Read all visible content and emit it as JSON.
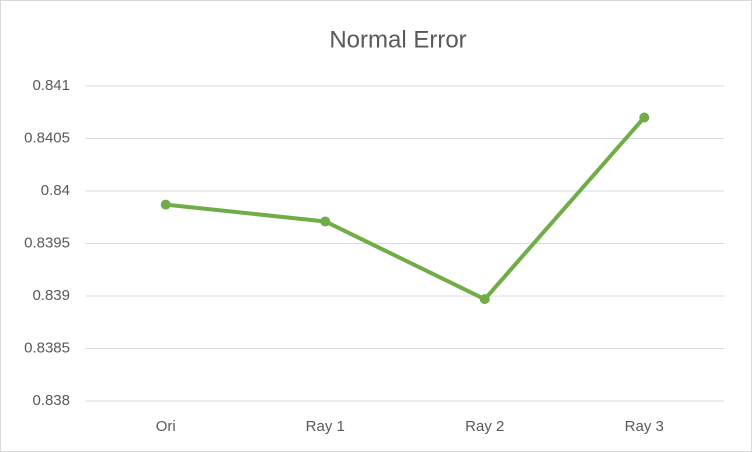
{
  "chart_data": {
    "type": "line",
    "title": "Normal Error",
    "categories": [
      "Ori",
      "Ray 1",
      "Ray 2",
      "Ray 3"
    ],
    "values": [
      0.83987,
      0.83971,
      0.83897,
      0.8407
    ],
    "color": "#70ad47",
    "ylim": [
      0.838,
      0.841
    ],
    "yticks": [
      0.838,
      0.8385,
      0.839,
      0.8395,
      0.84,
      0.8405,
      0.841
    ],
    "grid": true
  }
}
